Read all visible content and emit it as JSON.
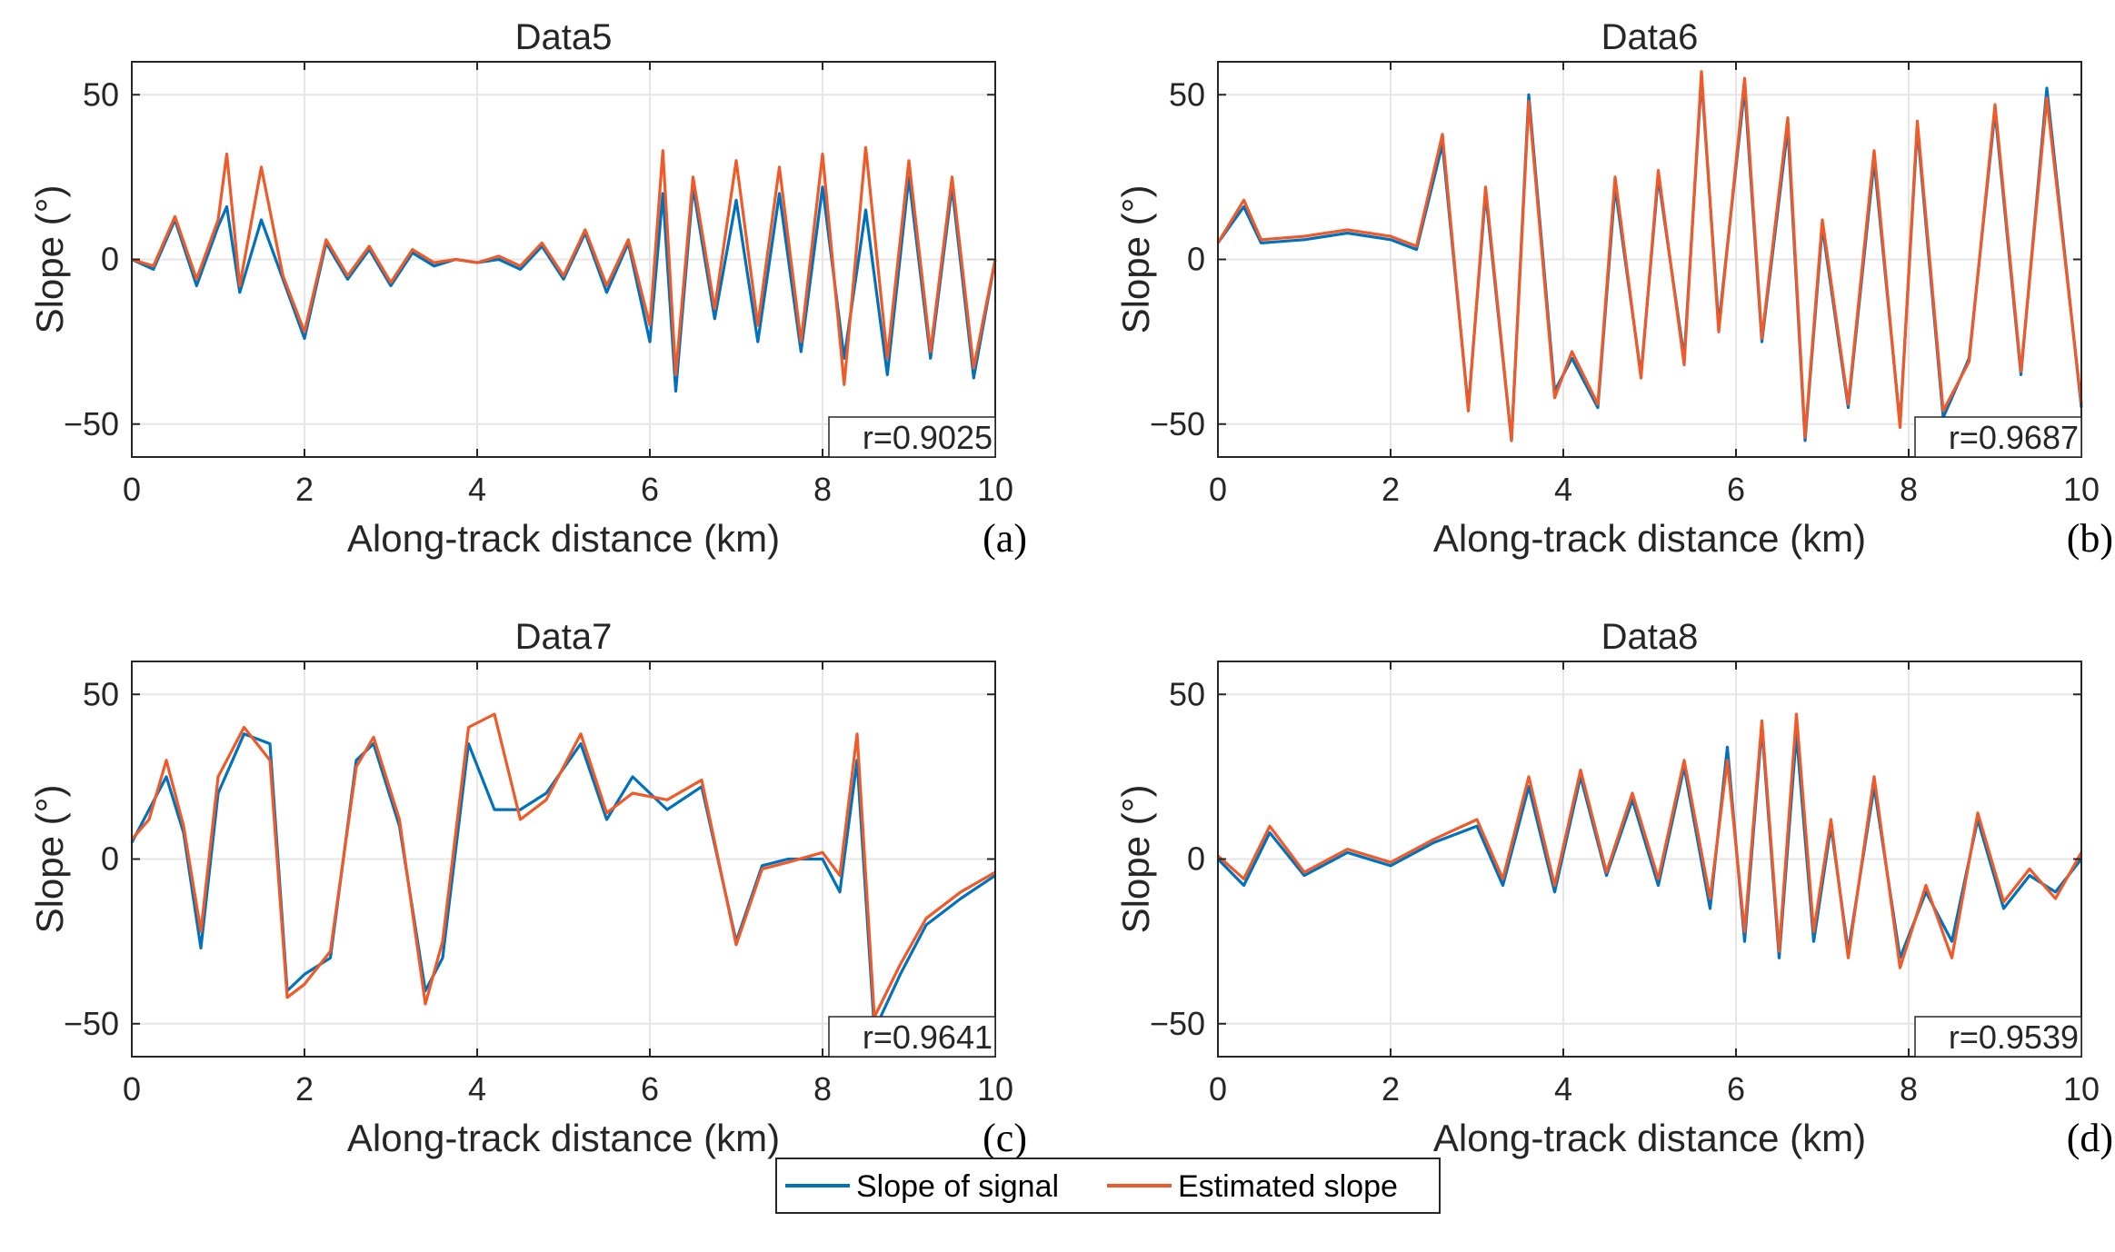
{
  "colors": {
    "signal": "#0072BD",
    "estimated": "#F05A28",
    "axis": "#262626",
    "grid": "#e6e6e6"
  },
  "legend": {
    "signal_label": "Slope of signal",
    "estimated_label": "Estimated slope"
  },
  "chart_data": [
    {
      "type": "line",
      "panel_label": "(a)",
      "title": "Data5",
      "xlabel": "Along-track distance (km)",
      "ylabel": "Slope (°)",
      "xlim": [
        0,
        10
      ],
      "ylim": [
        -60,
        60
      ],
      "xticks": [
        "0",
        "2",
        "4",
        "6",
        "8",
        "10"
      ],
      "yticks": [
        "50",
        "0",
        "−50"
      ],
      "correlation": "r=0.9025",
      "x": [
        0,
        0.25,
        0.5,
        0.75,
        1,
        1.1,
        1.25,
        1.5,
        1.75,
        2,
        2.25,
        2.5,
        2.75,
        3,
        3.25,
        3.5,
        3.75,
        4,
        4.25,
        4.5,
        4.75,
        5,
        5.25,
        5.5,
        5.75,
        6,
        6.15,
        6.3,
        6.5,
        6.75,
        7,
        7.25,
        7.5,
        7.75,
        8,
        8.25,
        8.5,
        8.75,
        9,
        9.25,
        9.5,
        9.75,
        10
      ],
      "series": [
        {
          "name": "Slope of signal",
          "values": [
            0,
            -3,
            12,
            -8,
            10,
            16,
            -10,
            12,
            -6,
            -24,
            5,
            -6,
            3,
            -8,
            2,
            -2,
            0,
            -1,
            0,
            -3,
            4,
            -6,
            8,
            -10,
            5,
            -25,
            20,
            -40,
            22,
            -18,
            18,
            -25,
            20,
            -28,
            22,
            -30,
            15,
            -35,
            25,
            -30,
            22,
            -36,
            0
          ]
        },
        {
          "name": "Estimated slope",
          "values": [
            0,
            -2,
            13,
            -6,
            12,
            32,
            -8,
            28,
            -5,
            -22,
            6,
            -5,
            4,
            -7,
            3,
            -1,
            0,
            -1,
            1,
            -2,
            5,
            -5,
            9,
            -8,
            6,
            -20,
            33,
            -35,
            25,
            -15,
            30,
            -20,
            28,
            -25,
            32,
            -38,
            34,
            -30,
            30,
            -28,
            25,
            -33,
            0
          ]
        }
      ]
    },
    {
      "type": "line",
      "panel_label": "(b)",
      "title": "Data6",
      "xlabel": "Along-track distance (km)",
      "ylabel": "Slope (°)",
      "xlim": [
        0,
        10
      ],
      "ylim": [
        -60,
        60
      ],
      "xticks": [
        "0",
        "2",
        "4",
        "6",
        "8",
        "10"
      ],
      "yticks": [
        "50",
        "0",
        "−50"
      ],
      "correlation": "r=0.9687",
      "x": [
        0,
        0.3,
        0.5,
        1,
        1.5,
        2,
        2.3,
        2.6,
        2.9,
        3.1,
        3.4,
        3.6,
        3.9,
        4.1,
        4.4,
        4.6,
        4.9,
        5.1,
        5.4,
        5.6,
        5.8,
        6.1,
        6.3,
        6.6,
        6.8,
        7,
        7.3,
        7.6,
        7.9,
        8.1,
        8.4,
        8.7,
        9,
        9.3,
        9.6,
        10
      ],
      "series": [
        {
          "name": "Slope of signal",
          "values": [
            5,
            16,
            5,
            6,
            8,
            6,
            3,
            35,
            -45,
            20,
            -55,
            50,
            -40,
            -30,
            -45,
            22,
            -35,
            25,
            -30,
            55,
            -20,
            52,
            -25,
            40,
            -55,
            10,
            -45,
            30,
            -50,
            40,
            -48,
            -30,
            45,
            -35,
            52,
            -45
          ]
        },
        {
          "name": "Estimated slope",
          "values": [
            5,
            18,
            6,
            7,
            9,
            7,
            4,
            38,
            -46,
            22,
            -55,
            48,
            -42,
            -28,
            -44,
            25,
            -36,
            27,
            -32,
            57,
            -22,
            55,
            -24,
            43,
            -54,
            12,
            -44,
            33,
            -51,
            42,
            -46,
            -31,
            47,
            -34,
            49,
            -44
          ]
        }
      ]
    },
    {
      "type": "line",
      "panel_label": "(c)",
      "title": "Data7",
      "xlabel": "Along-track distance (km)",
      "ylabel": "Slope (°)",
      "xlim": [
        0,
        10
      ],
      "ylim": [
        -60,
        60
      ],
      "xticks": [
        "0",
        "2",
        "4",
        "6",
        "8",
        "10"
      ],
      "yticks": [
        "50",
        "0",
        "−50"
      ],
      "correlation": "r=0.9641",
      "x": [
        0,
        0.2,
        0.4,
        0.6,
        0.8,
        1,
        1.3,
        1.6,
        1.8,
        2,
        2.3,
        2.6,
        2.8,
        3.1,
        3.4,
        3.6,
        3.9,
        4.2,
        4.5,
        4.8,
        5.2,
        5.5,
        5.8,
        6.2,
        6.6,
        7,
        7.3,
        7.6,
        8,
        8.2,
        8.4,
        8.6,
        8.9,
        9.2,
        9.6,
        10
      ],
      "series": [
        {
          "name": "Slope of signal",
          "values": [
            5,
            15,
            25,
            8,
            -27,
            20,
            38,
            35,
            -40,
            -35,
            -30,
            30,
            35,
            10,
            -40,
            -30,
            35,
            15,
            15,
            20,
            35,
            12,
            25,
            15,
            22,
            -25,
            -2,
            0,
            0,
            -10,
            30,
            -52,
            -35,
            -20,
            -12,
            -5
          ]
        },
        {
          "name": "Estimated slope",
          "values": [
            6,
            12,
            30,
            10,
            -22,
            25,
            40,
            30,
            -42,
            -38,
            -28,
            28,
            37,
            12,
            -44,
            -25,
            40,
            44,
            12,
            18,
            38,
            14,
            20,
            18,
            24,
            -26,
            -3,
            -1,
            2,
            -5,
            38,
            -48,
            -32,
            -18,
            -10,
            -4
          ]
        }
      ]
    },
    {
      "type": "line",
      "panel_label": "(d)",
      "title": "Data8",
      "xlabel": "Along-track distance (km)",
      "ylabel": "Slope (°)",
      "xlim": [
        0,
        10
      ],
      "ylim": [
        -60,
        60
      ],
      "xticks": [
        "0",
        "2",
        "4",
        "6",
        "8",
        "10"
      ],
      "yticks": [
        "50",
        "0",
        "−50"
      ],
      "correlation": "r=0.9539",
      "x": [
        0,
        0.3,
        0.6,
        1,
        1.5,
        2,
        2.5,
        3,
        3.3,
        3.6,
        3.9,
        4.2,
        4.5,
        4.8,
        5.1,
        5.4,
        5.7,
        5.9,
        6.1,
        6.3,
        6.5,
        6.7,
        6.9,
        7.1,
        7.3,
        7.6,
        7.9,
        8.2,
        8.5,
        8.8,
        9.1,
        9.4,
        9.7,
        10
      ],
      "series": [
        {
          "name": "Slope of signal",
          "values": [
            0,
            -8,
            8,
            -5,
            2,
            -2,
            5,
            10,
            -8,
            22,
            -10,
            25,
            -5,
            18,
            -8,
            28,
            -15,
            34,
            -25,
            40,
            -30,
            38,
            -25,
            10,
            -28,
            22,
            -30,
            -10,
            -25,
            12,
            -15,
            -5,
            -10,
            0
          ]
        },
        {
          "name": "Estimated slope",
          "values": [
            1,
            -6,
            10,
            -4,
            3,
            -1,
            6,
            12,
            -6,
            25,
            -8,
            27,
            -4,
            20,
            -6,
            30,
            -12,
            30,
            -22,
            42,
            -28,
            44,
            -22,
            12,
            -30,
            25,
            -33,
            -8,
            -30,
            14,
            -13,
            -3,
            -12,
            2
          ]
        }
      ]
    }
  ]
}
